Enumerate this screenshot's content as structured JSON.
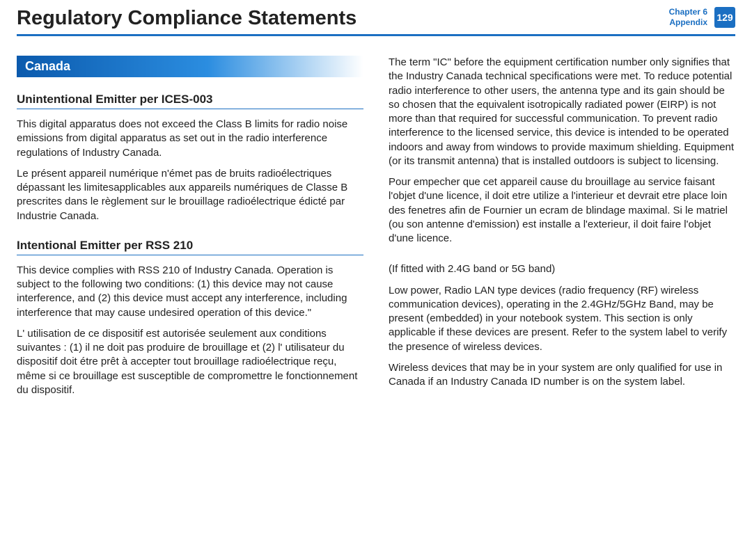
{
  "header": {
    "title": "Regulatory Compliance Statements",
    "chapter_line1": "Chapter 6",
    "chapter_line2": "Appendix",
    "page_number": "129"
  },
  "left": {
    "region": "Canada",
    "sub1": "Unintentional Emitter per ICES-003",
    "p1": "This digital apparatus does not exceed the Class B limits for radio noise emissions from digital apparatus as set out in the radio interference regulations of Industry Canada.",
    "p2": "Le présent appareil numérique n'émet pas de bruits radioélectriques dépassant les limitesapplicables aux appareils numériques de Classe B prescrites dans le règlement sur le brouillage radioélectrique édicté par Industrie Canada.",
    "sub2": "Intentional Emitter per RSS 210",
    "p3": "This device complies with RSS 210 of Industry Canada. Operation is subject to the following two conditions: (1) this device may not cause interference, and (2) this device must accept any interference, including interference that may cause undesired operation of this device.\"",
    "p4": "L' utilisation de ce dispositif est autorisée seulement aux conditions suivantes : (1) il ne doit pas produire de brouillage et (2) l' utilisateur du dispositif doit étre prêt à accepter tout brouillage radioélectrique reçu, même si ce brouillage est susceptible de compromettre le fonctionnement du dispositif."
  },
  "right": {
    "p1": "The term \"IC\" before the equipment certification number only signifies that the Industry Canada technical specifications were met. To reduce potential radio interference to other users, the antenna type and its gain should be so chosen that the equivalent isotropically radiated power (EIRP) is not more than that required for successful communication. To prevent radio interference to the licensed service, this device is intended to be operated indoors and away from windows to provide maximum shielding. Equipment (or its transmit antenna) that is installed outdoors is subject to licensing.",
    "p2": "Pour empecher que cet appareil cause du brouillage au service faisant l'objet d'une licence, il doit etre utilize a l'interieur et devrait etre place loin des fenetres afin de Fournier un ecram de blindage maximal. Si le matriel (ou son antenne d'emission) est installe a l'exterieur, il doit faire l'objet d'une licence.",
    "p3": "(If fitted with 2.4G band or 5G band)",
    "p4": "Low power, Radio LAN type devices (radio frequency (RF) wireless communication devices), operating in the 2.4GHz/5GHz Band, may be present (embedded) in your notebook system. This section is only applicable if these devices are present. Refer to the system label to verify the presence of wireless devices.",
    "p5": "Wireless devices that may be in your system are only qualified for use in Canada if an Industry Canada ID number is on the system label."
  }
}
